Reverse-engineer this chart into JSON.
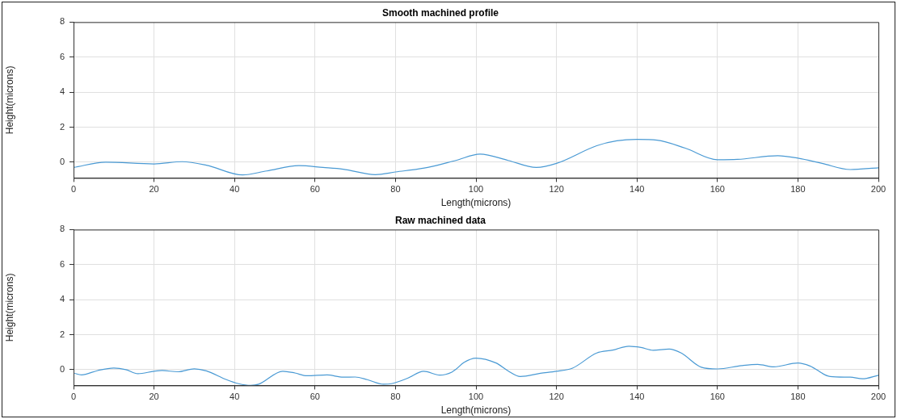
{
  "chart_data": [
    {
      "type": "line",
      "title": "Smooth machined profile",
      "xlabel": "Length(microns)",
      "ylabel": "Height(microns)",
      "xlim": [
        0,
        200
      ],
      "xticks": [
        0,
        20,
        40,
        60,
        80,
        100,
        120,
        140,
        160,
        180,
        200
      ],
      "ylim": [
        -0.9,
        8
      ],
      "yticks": [
        0,
        2,
        4,
        6,
        8
      ],
      "grid": true,
      "legend": false,
      "series": [
        {
          "color": "#4a9ad4",
          "x": [
            0,
            8,
            20,
            27,
            33,
            42,
            48,
            56,
            62,
            67,
            75,
            80,
            88,
            95,
            101,
            108,
            115,
            120,
            130,
            135,
            140,
            145,
            152,
            160,
            165,
            175,
            180,
            186,
            193,
            200
          ],
          "values": [
            -0.3,
            0,
            -0.1,
            0.03,
            -0.17,
            -0.73,
            -0.5,
            -0.2,
            -0.3,
            -0.4,
            -0.71,
            -0.56,
            -0.3,
            0.1,
            0.46,
            0.1,
            -0.3,
            -0.07,
            0.94,
            1.22,
            1.3,
            1.26,
            0.8,
            0.14,
            0.16,
            0.37,
            0.23,
            -0.07,
            -0.42,
            -0.32
          ]
        }
      ]
    },
    {
      "type": "line",
      "title": "Raw machined data",
      "xlabel": "Length(microns)",
      "ylabel": "Height(microns)",
      "xlim": [
        0,
        200
      ],
      "xticks": [
        0,
        20,
        40,
        60,
        80,
        100,
        120,
        140,
        160,
        180,
        200
      ],
      "ylim": [
        -0.9,
        8
      ],
      "yticks": [
        0,
        2,
        4,
        6,
        8
      ],
      "grid": true,
      "legend": false,
      "series": [
        {
          "color": "#4a9ad4",
          "x": [
            0,
            2,
            6,
            10,
            13,
            16,
            20,
            22,
            26,
            30,
            33,
            38,
            41,
            44,
            46,
            52,
            55,
            58,
            63,
            67,
            70,
            73,
            77,
            79,
            83,
            87,
            91,
            94,
            95,
            97,
            100,
            105,
            108,
            111,
            116,
            120,
            124,
            130,
            134,
            138,
            141,
            144,
            148,
            151,
            156,
            160,
            166,
            170,
            174,
            180,
            183,
            188,
            193,
            196,
            200
          ],
          "values": [
            -0.19,
            -0.3,
            -0.05,
            0.09,
            0,
            -0.23,
            -0.09,
            -0.05,
            -0.12,
            0.05,
            -0.07,
            -0.57,
            -0.8,
            -0.9,
            -0.83,
            -0.09,
            -0.19,
            -0.35,
            -0.3,
            -0.43,
            -0.42,
            -0.57,
            -0.83,
            -0.8,
            -0.49,
            -0.09,
            -0.31,
            -0.14,
            0.02,
            0.41,
            0.66,
            0.38,
            -0.07,
            -0.39,
            -0.21,
            -0.09,
            0.09,
            0.95,
            1.12,
            1.34,
            1.27,
            1.11,
            1.18,
            0.95,
            0.14,
            0.04,
            0.23,
            0.3,
            0.16,
            0.38,
            0.21,
            -0.39,
            -0.43,
            -0.52,
            -0.32
          ]
        }
      ]
    }
  ]
}
